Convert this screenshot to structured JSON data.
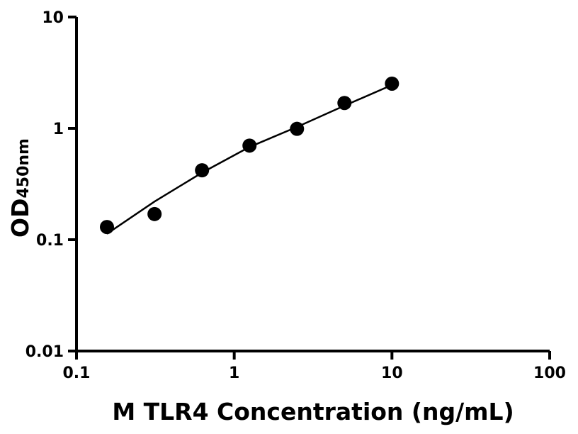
{
  "chart_data": {
    "type": "scatter",
    "title": "",
    "xlabel": "M TLR4 Concentration (ng/mL)",
    "ylabel": "OD",
    "ylabel_subscript": "450nm",
    "xscale": "log",
    "yscale": "log",
    "xlim": [
      0.1,
      100
    ],
    "ylim": [
      0.01,
      10
    ],
    "xticks": [
      "0.1",
      "1",
      "10",
      "100"
    ],
    "yticks": [
      "0.01",
      "0.1",
      "1",
      "10"
    ],
    "grid": false,
    "marker_color": "#000000",
    "points": {
      "x": [
        0.156,
        0.3125,
        0.625,
        1.25,
        2.5,
        5,
        10
      ],
      "y": [
        0.13,
        0.17,
        0.42,
        0.7,
        0.99,
        1.69,
        2.52
      ]
    },
    "fit_curve": {
      "x": [
        0.156,
        0.3125,
        0.625,
        1.25,
        2.5,
        5,
        10
      ],
      "y": [
        0.113,
        0.22,
        0.4,
        0.68,
        1.03,
        1.6,
        2.45
      ]
    }
  }
}
